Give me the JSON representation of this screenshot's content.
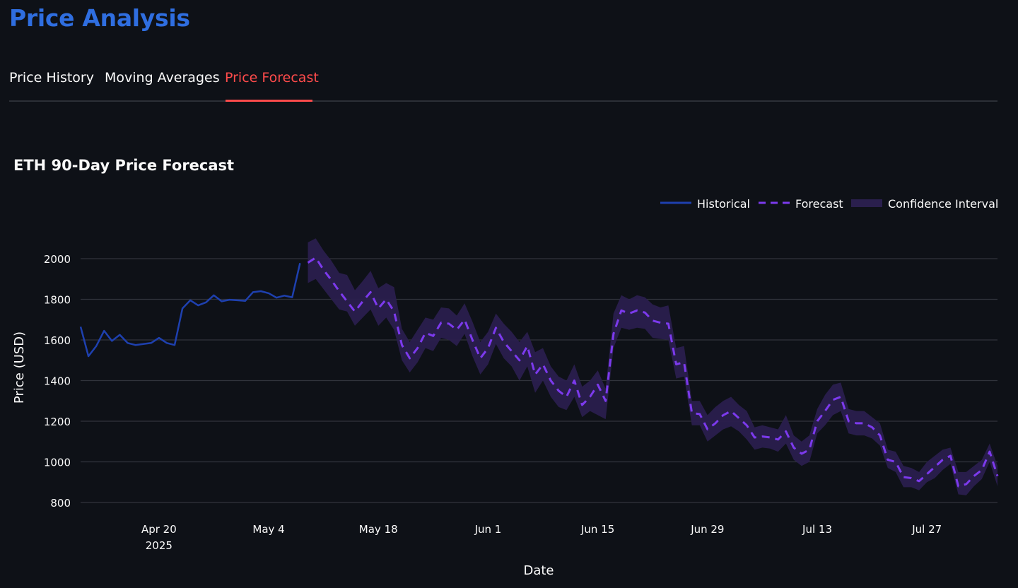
{
  "page": {
    "title": "Price Analysis"
  },
  "tabs": [
    {
      "label": "Price History",
      "active": false
    },
    {
      "label": "Moving Averages",
      "active": false
    },
    {
      "label": "Price Forecast",
      "active": true
    }
  ],
  "colors": {
    "title": "#2f6ee0",
    "active_tab": "#ff4b4b",
    "historical": "#1e40af",
    "forecast": "#7c3aed",
    "band": "#2a1f4d",
    "grid": "#31343c",
    "background": "#0e1117"
  },
  "chart_data": {
    "type": "line",
    "title": "ETH 90-Day Price Forecast",
    "xlabel": "Date",
    "ylabel": "Price (USD)",
    "x_range": [
      "2025-04-10",
      "2025-08-05"
    ],
    "ylim": [
      750,
      2100
    ],
    "y_ticks": [
      800,
      1000,
      1200,
      1400,
      1600,
      1800,
      2000
    ],
    "x_ticks": [
      {
        "date": "2025-04-20",
        "label": "Apr 20",
        "sublabel": "2025"
      },
      {
        "date": "2025-05-04",
        "label": "May 4"
      },
      {
        "date": "2025-05-18",
        "label": "May 18"
      },
      {
        "date": "2025-06-01",
        "label": "Jun 1"
      },
      {
        "date": "2025-06-15",
        "label": "Jun 15"
      },
      {
        "date": "2025-06-29",
        "label": "Jun 29"
      },
      {
        "date": "2025-07-13",
        "label": "Jul 13"
      },
      {
        "date": "2025-07-27",
        "label": "Jul 27"
      }
    ],
    "grid": true,
    "legend_position": "top-right",
    "legend": [
      {
        "label": "Historical",
        "style": "solid"
      },
      {
        "label": "Forecast",
        "style": "dashed"
      },
      {
        "label": "Confidence Interval",
        "style": "band"
      }
    ],
    "series": [
      {
        "name": "Historical",
        "x": [
          "2025-04-10",
          "2025-04-11",
          "2025-04-12",
          "2025-04-13",
          "2025-04-14",
          "2025-04-15",
          "2025-04-16",
          "2025-04-17",
          "2025-04-18",
          "2025-04-19",
          "2025-04-20",
          "2025-04-21",
          "2025-04-22",
          "2025-04-23",
          "2025-04-24",
          "2025-04-25",
          "2025-04-26",
          "2025-04-27",
          "2025-04-28",
          "2025-04-29",
          "2025-04-30",
          "2025-05-01",
          "2025-05-02",
          "2025-05-03",
          "2025-05-04",
          "2025-05-05",
          "2025-05-06",
          "2025-05-07",
          "2025-05-08"
        ],
        "y": [
          1665,
          1520,
          1570,
          1645,
          1595,
          1625,
          1585,
          1575,
          1580,
          1585,
          1610,
          1585,
          1575,
          1755,
          1795,
          1770,
          1785,
          1820,
          1790,
          1798,
          1795,
          1792,
          1835,
          1840,
          1830,
          1808,
          1818,
          1810,
          1978
        ]
      },
      {
        "name": "Forecast",
        "x": [
          "2025-05-09",
          "2025-05-10",
          "2025-05-11",
          "2025-05-12",
          "2025-05-13",
          "2025-05-14",
          "2025-05-15",
          "2025-05-16",
          "2025-05-17",
          "2025-05-18",
          "2025-05-19",
          "2025-05-20",
          "2025-05-21",
          "2025-05-22",
          "2025-05-23",
          "2025-05-24",
          "2025-05-25",
          "2025-05-26",
          "2025-05-27",
          "2025-05-28",
          "2025-05-29",
          "2025-05-30",
          "2025-05-31",
          "2025-06-01",
          "2025-06-02",
          "2025-06-03",
          "2025-06-04",
          "2025-06-05",
          "2025-06-06",
          "2025-06-07",
          "2025-06-08",
          "2025-06-09",
          "2025-06-10",
          "2025-06-11",
          "2025-06-12",
          "2025-06-13",
          "2025-06-14",
          "2025-06-15",
          "2025-06-16",
          "2025-06-17",
          "2025-06-18",
          "2025-06-19",
          "2025-06-20",
          "2025-06-21",
          "2025-06-22",
          "2025-06-23",
          "2025-06-24",
          "2025-06-25",
          "2025-06-26",
          "2025-06-27",
          "2025-06-28",
          "2025-06-29",
          "2025-06-30",
          "2025-07-01",
          "2025-07-02",
          "2025-07-03",
          "2025-07-04",
          "2025-07-05",
          "2025-07-06",
          "2025-07-07",
          "2025-07-08",
          "2025-07-09",
          "2025-07-10",
          "2025-07-11",
          "2025-07-12",
          "2025-07-13",
          "2025-07-14",
          "2025-07-15",
          "2025-07-16",
          "2025-07-17",
          "2025-07-18",
          "2025-07-19",
          "2025-07-20",
          "2025-07-21",
          "2025-07-22",
          "2025-07-23",
          "2025-07-24",
          "2025-07-25",
          "2025-07-26",
          "2025-07-27",
          "2025-07-28",
          "2025-07-29",
          "2025-07-30",
          "2025-07-31",
          "2025-08-01",
          "2025-08-02",
          "2025-08-03",
          "2025-08-04",
          "2025-08-05"
        ],
        "y": [
          1980,
          2005,
          1945,
          1895,
          1840,
          1790,
          1740,
          1790,
          1835,
          1755,
          1800,
          1740,
          1575,
          1510,
          1560,
          1635,
          1620,
          1685,
          1680,
          1650,
          1700,
          1600,
          1510,
          1560,
          1660,
          1590,
          1545,
          1500,
          1570,
          1430,
          1480,
          1400,
          1350,
          1320,
          1400,
          1280,
          1320,
          1380,
          1300,
          1630,
          1745,
          1730,
          1745,
          1735,
          1695,
          1685,
          1680,
          1480,
          1490,
          1240,
          1235,
          1160,
          1190,
          1230,
          1250,
          1215,
          1180,
          1120,
          1125,
          1120,
          1110,
          1150,
          1070,
          1040,
          1060,
          1200,
          1250,
          1305,
          1320,
          1200,
          1190,
          1190,
          1170,
          1130,
          1010,
          1000,
          925,
          920,
          905,
          940,
          975,
          1010,
          1030,
          880,
          890,
          930,
          960,
          1050,
          930
        ]
      },
      {
        "name": "Confidence Interval",
        "x": [
          "2025-05-09",
          "2025-05-10",
          "2025-05-11",
          "2025-05-12",
          "2025-05-13",
          "2025-05-14",
          "2025-05-15",
          "2025-05-16",
          "2025-05-17",
          "2025-05-18",
          "2025-05-19",
          "2025-05-20",
          "2025-05-21",
          "2025-05-22",
          "2025-05-23",
          "2025-05-24",
          "2025-05-25",
          "2025-05-26",
          "2025-05-27",
          "2025-05-28",
          "2025-05-29",
          "2025-05-30",
          "2025-05-31",
          "2025-06-01",
          "2025-06-02",
          "2025-06-03",
          "2025-06-04",
          "2025-06-05",
          "2025-06-06",
          "2025-06-07",
          "2025-06-08",
          "2025-06-09",
          "2025-06-10",
          "2025-06-11",
          "2025-06-12",
          "2025-06-13",
          "2025-06-14",
          "2025-06-15",
          "2025-06-16",
          "2025-06-17",
          "2025-06-18",
          "2025-06-19",
          "2025-06-20",
          "2025-06-21",
          "2025-06-22",
          "2025-06-23",
          "2025-06-24",
          "2025-06-25",
          "2025-06-26",
          "2025-06-27",
          "2025-06-28",
          "2025-06-29",
          "2025-06-30",
          "2025-07-01",
          "2025-07-02",
          "2025-07-03",
          "2025-07-04",
          "2025-07-05",
          "2025-07-06",
          "2025-07-07",
          "2025-07-08",
          "2025-07-09",
          "2025-07-10",
          "2025-07-11",
          "2025-07-12",
          "2025-07-13",
          "2025-07-14",
          "2025-07-15",
          "2025-07-16",
          "2025-07-17",
          "2025-07-18",
          "2025-07-19",
          "2025-07-20",
          "2025-07-21",
          "2025-07-22",
          "2025-07-23",
          "2025-07-24",
          "2025-07-25",
          "2025-07-26",
          "2025-07-27",
          "2025-07-28",
          "2025-07-29",
          "2025-07-30",
          "2025-07-31",
          "2025-08-01",
          "2025-08-02",
          "2025-08-03",
          "2025-08-04",
          "2025-08-05"
        ],
        "upper": [
          2080,
          2100,
          2040,
          1990,
          1930,
          1920,
          1845,
          1890,
          1940,
          1855,
          1880,
          1860,
          1655,
          1590,
          1650,
          1710,
          1700,
          1760,
          1755,
          1720,
          1780,
          1690,
          1590,
          1640,
          1730,
          1680,
          1640,
          1590,
          1640,
          1540,
          1560,
          1470,
          1420,
          1400,
          1480,
          1370,
          1400,
          1450,
          1360,
          1730,
          1820,
          1800,
          1820,
          1810,
          1775,
          1760,
          1770,
          1560,
          1570,
          1300,
          1300,
          1230,
          1270,
          1300,
          1320,
          1280,
          1250,
          1170,
          1180,
          1170,
          1160,
          1230,
          1130,
          1100,
          1130,
          1260,
          1330,
          1380,
          1390,
          1260,
          1250,
          1250,
          1220,
          1190,
          1060,
          1050,
          980,
          970,
          950,
          1000,
          1030,
          1060,
          1070,
          950,
          950,
          980,
          1010,
          1090,
          980
        ]
      },
      {
        "name": "Confidence Interval Lower",
        "x": [],
        "lower": [
          1880,
          1900,
          1850,
          1800,
          1750,
          1740,
          1670,
          1710,
          1750,
          1670,
          1710,
          1650,
          1500,
          1440,
          1490,
          1560,
          1545,
          1610,
          1600,
          1570,
          1630,
          1520,
          1430,
          1480,
          1580,
          1510,
          1470,
          1400,
          1470,
          1340,
          1400,
          1320,
          1270,
          1255,
          1320,
          1220,
          1250,
          1230,
          1210,
          1560,
          1660,
          1650,
          1660,
          1655,
          1610,
          1605,
          1600,
          1410,
          1420,
          1180,
          1180,
          1100,
          1130,
          1160,
          1175,
          1150,
          1110,
          1060,
          1070,
          1065,
          1050,
          1090,
          1010,
          980,
          1000,
          1140,
          1180,
          1230,
          1250,
          1140,
          1130,
          1130,
          1115,
          1080,
          970,
          950,
          875,
          875,
          860,
          900,
          920,
          960,
          990,
          840,
          835,
          880,
          915,
          1000,
          880
        ]
      }
    ]
  }
}
